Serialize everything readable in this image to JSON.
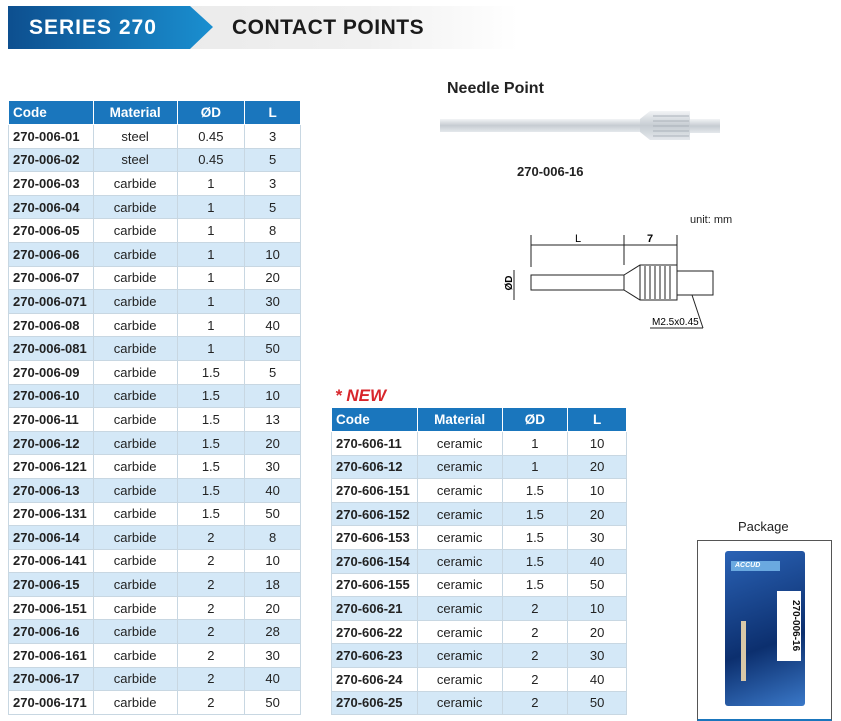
{
  "banner": {
    "series": "SERIES 270",
    "title": "CONTACT POINTS"
  },
  "left_table": {
    "headers": [
      "Code",
      "Material",
      "ØD",
      "L"
    ],
    "rows": [
      [
        "270-006-01",
        "steel",
        "0.45",
        "3"
      ],
      [
        "270-006-02",
        "steel",
        "0.45",
        "5"
      ],
      [
        "270-006-03",
        "carbide",
        "1",
        "3"
      ],
      [
        "270-006-04",
        "carbide",
        "1",
        "5"
      ],
      [
        "270-006-05",
        "carbide",
        "1",
        "8"
      ],
      [
        "270-006-06",
        "carbide",
        "1",
        "10"
      ],
      [
        "270-006-07",
        "carbide",
        "1",
        "20"
      ],
      [
        "270-006-071",
        "carbide",
        "1",
        "30"
      ],
      [
        "270-006-08",
        "carbide",
        "1",
        "40"
      ],
      [
        "270-006-081",
        "carbide",
        "1",
        "50"
      ],
      [
        "270-006-09",
        "carbide",
        "1.5",
        "5"
      ],
      [
        "270-006-10",
        "carbide",
        "1.5",
        "10"
      ],
      [
        "270-006-11",
        "carbide",
        "1.5",
        "13"
      ],
      [
        "270-006-12",
        "carbide",
        "1.5",
        "20"
      ],
      [
        "270-006-121",
        "carbide",
        "1.5",
        "30"
      ],
      [
        "270-006-13",
        "carbide",
        "1.5",
        "40"
      ],
      [
        "270-006-131",
        "carbide",
        "1.5",
        "50"
      ],
      [
        "270-006-14",
        "carbide",
        "2",
        "8"
      ],
      [
        "270-006-141",
        "carbide",
        "2",
        "10"
      ],
      [
        "270-006-15",
        "carbide",
        "2",
        "18"
      ],
      [
        "270-006-151",
        "carbide",
        "2",
        "20"
      ],
      [
        "270-006-16",
        "carbide",
        "2",
        "28"
      ],
      [
        "270-006-161",
        "carbide",
        "2",
        "30"
      ],
      [
        "270-006-17",
        "carbide",
        "2",
        "40"
      ],
      [
        "270-006-171",
        "carbide",
        "2",
        "50"
      ]
    ]
  },
  "new_label": "* NEW",
  "right_table": {
    "headers": [
      "Code",
      "Material",
      "ØD",
      "L"
    ],
    "rows": [
      [
        "270-606-11",
        "ceramic",
        "1",
        "10"
      ],
      [
        "270-606-12",
        "ceramic",
        "1",
        "20"
      ],
      [
        "270-606-151",
        "ceramic",
        "1.5",
        "10"
      ],
      [
        "270-606-152",
        "ceramic",
        "1.5",
        "20"
      ],
      [
        "270-606-153",
        "ceramic",
        "1.5",
        "30"
      ],
      [
        "270-606-154",
        "ceramic",
        "1.5",
        "40"
      ],
      [
        "270-606-155",
        "ceramic",
        "1.5",
        "50"
      ],
      [
        "270-606-21",
        "ceramic",
        "2",
        "10"
      ],
      [
        "270-606-22",
        "ceramic",
        "2",
        "20"
      ],
      [
        "270-606-23",
        "ceramic",
        "2",
        "30"
      ],
      [
        "270-606-24",
        "ceramic",
        "2",
        "40"
      ],
      [
        "270-606-25",
        "ceramic",
        "2",
        "50"
      ]
    ]
  },
  "product": {
    "name": "Needle Point",
    "code": "270-006-16"
  },
  "drawing": {
    "unit": "unit: mm",
    "dim_l": "L",
    "dim_7": "7",
    "dim_d": "ØD",
    "thread": "M2.5x0.45"
  },
  "package": {
    "label": "Package",
    "brand": "ACCUD",
    "code": "270-006-16"
  }
}
